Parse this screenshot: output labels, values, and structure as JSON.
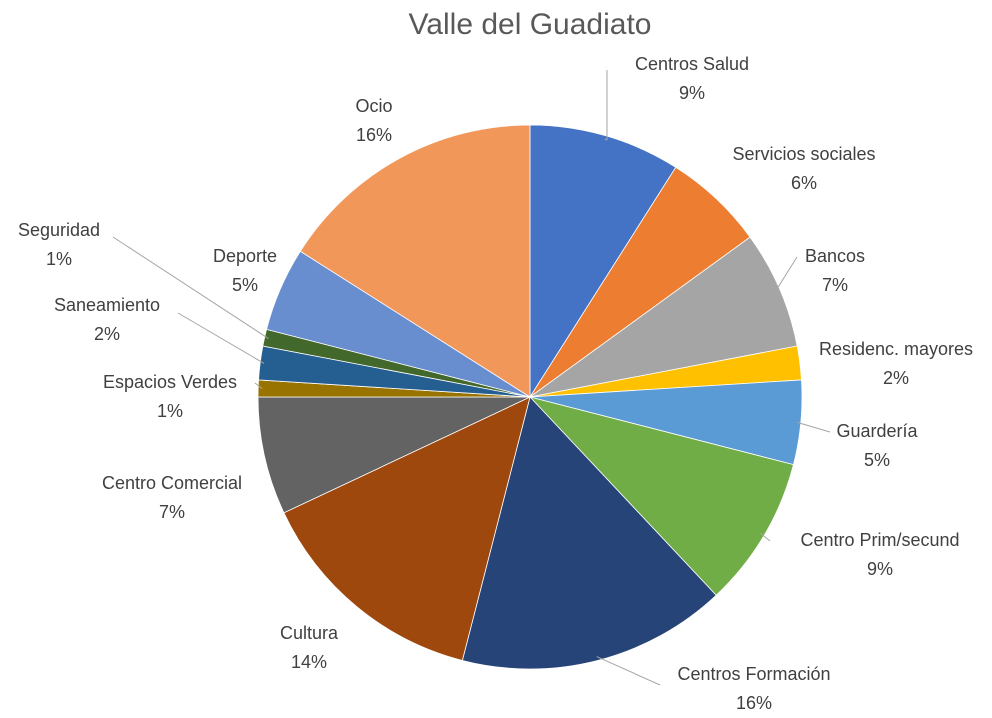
{
  "chart_data": {
    "type": "pie",
    "title": "Valle del Guadiato",
    "categories": [
      "Centros Salud",
      "Servicios sociales",
      "Bancos",
      "Residenc. mayores",
      "Guardería",
      "Centro Prim/secund",
      "Centros Formación",
      "Cultura",
      "Centro Comercial",
      "Espacios Verdes",
      "Saneamiento",
      "Seguridad",
      "Deporte",
      "Ocio"
    ],
    "values": [
      9,
      6,
      7,
      2,
      5,
      9,
      16,
      14,
      7,
      1,
      2,
      1,
      5,
      16
    ],
    "value_labels": [
      "9%",
      "6%",
      "7%",
      "2%",
      "5%",
      "9%",
      "16%",
      "14%",
      "7%",
      "1%",
      "2%",
      "1%",
      "5%",
      "16%"
    ],
    "colors": [
      "#4472c4",
      "#ed7d31",
      "#a5a5a5",
      "#ffc000",
      "#5b9bd5",
      "#70ad47",
      "#264478",
      "#9e480e",
      "#636363",
      "#997300",
      "#255e91",
      "#43682b",
      "#698ed0",
      "#f1975a"
    ]
  }
}
